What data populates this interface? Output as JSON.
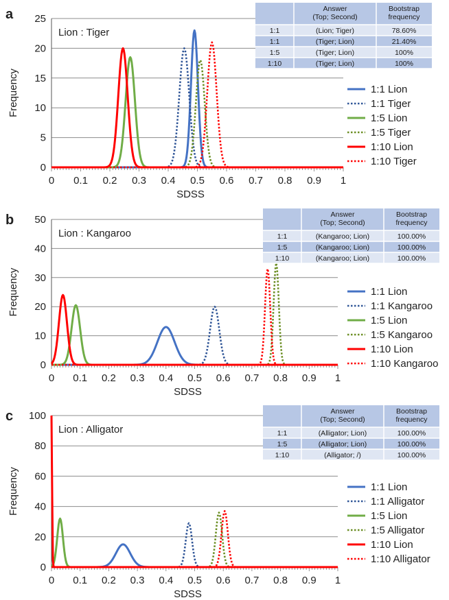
{
  "chart_data": [
    {
      "type": "line",
      "panel_label": "a",
      "annotation": "Lion : Tiger",
      "xlabel": "SDSS",
      "ylabel": "Frequency",
      "xlim": [
        0,
        1
      ],
      "ylim": [
        0,
        25
      ],
      "xticks": [
        "0",
        "0.1",
        "0.2",
        "0.3",
        "0.4",
        "0.5",
        "0.6",
        "0.7",
        "0.8",
        "0.9",
        "1"
      ],
      "yticks": [
        "0",
        "5",
        "10",
        "15",
        "20",
        "25"
      ],
      "grid": true,
      "legend_placement": "right",
      "series": [
        {
          "name": "1:1 Lion",
          "color": "#4472c4",
          "dash": "solid",
          "peak_x": 0.49,
          "peak_y": 23,
          "sigma": 0.012
        },
        {
          "name": "1:1 Tiger",
          "color": "#2f5597",
          "dash": "dotted",
          "peak_x": 0.455,
          "peak_y": 20,
          "sigma": 0.017
        },
        {
          "name": "1:5 Lion",
          "color": "#70ad47",
          "dash": "solid",
          "peak_x": 0.27,
          "peak_y": 18.5,
          "sigma": 0.016
        },
        {
          "name": "1:5 Tiger",
          "color": "#6b8e23",
          "dash": "dotted",
          "peak_x": 0.51,
          "peak_y": 18,
          "sigma": 0.015
        },
        {
          "name": "1:10 Lion",
          "color": "#ff0000",
          "dash": "solid",
          "peak_x": 0.245,
          "peak_y": 20,
          "sigma": 0.016
        },
        {
          "name": "1:10 Tiger",
          "color": "#ff0000",
          "dash": "dotted",
          "peak_x": 0.55,
          "peak_y": 21,
          "sigma": 0.016
        }
      ],
      "table": {
        "headers": [
          "",
          "Answer\n(Top; Second)",
          "Bootstrap\nfrequency"
        ],
        "rows": [
          [
            "1:1",
            "(Lion; Tiger)",
            "78.60%"
          ],
          [
            "1:1",
            "(Tiger; Lion)",
            "21.40%"
          ],
          [
            "1:5",
            "(Tiger; Lion)",
            "100%"
          ],
          [
            "1:10",
            "(Tiger; Lion)",
            "100%"
          ]
        ]
      }
    },
    {
      "type": "line",
      "panel_label": "b",
      "annotation": "Lion : Kangaroo",
      "xlabel": "SDSS",
      "ylabel": "Frequency",
      "xlim": [
        0,
        1
      ],
      "ylim": [
        0,
        50
      ],
      "xticks": [
        "0",
        "0.1",
        "0.2",
        "0.3",
        "0.4",
        "0.5",
        "0.6",
        "0.7",
        "0.8",
        "0.9",
        "1"
      ],
      "yticks": [
        "0",
        "10",
        "20",
        "30",
        "40",
        "50"
      ],
      "grid": true,
      "legend_placement": "right",
      "series": [
        {
          "name": "1:1 Lion",
          "color": "#4472c4",
          "dash": "solid",
          "peak_x": 0.4,
          "peak_y": 13,
          "sigma": 0.03
        },
        {
          "name": "1:1 Kangaroo",
          "color": "#2f5597",
          "dash": "dotted",
          "peak_x": 0.57,
          "peak_y": 20,
          "sigma": 0.016
        },
        {
          "name": "1:5 Lion",
          "color": "#70ad47",
          "dash": "solid",
          "peak_x": 0.085,
          "peak_y": 20.5,
          "sigma": 0.015
        },
        {
          "name": "1:5 Kangaroo",
          "color": "#6b8e23",
          "dash": "dotted",
          "peak_x": 0.785,
          "peak_y": 35,
          "sigma": 0.009
        },
        {
          "name": "1:10 Lion",
          "color": "#ff0000",
          "dash": "solid",
          "peak_x": 0.04,
          "peak_y": 24,
          "sigma": 0.014
        },
        {
          "name": "1:10 Kangaroo",
          "color": "#ff0000",
          "dash": "dotted",
          "peak_x": 0.755,
          "peak_y": 33,
          "sigma": 0.009
        }
      ],
      "table": {
        "headers": [
          "",
          "Answer\n(Top; Second)",
          "Bootstrap\nfrequency"
        ],
        "rows": [
          [
            "1:1",
            "(Kangaroo; Lion)",
            "100.00%"
          ],
          [
            "1:5",
            "(Kangaroo; Lion)",
            "100.00%"
          ],
          [
            "1:10",
            "(Kangaroo; Lion)",
            "100.00%"
          ]
        ]
      }
    },
    {
      "type": "line",
      "panel_label": "c",
      "annotation": "Lion : Alligator",
      "xlabel": "SDSS",
      "ylabel": "Frequency",
      "xlim": [
        0,
        1
      ],
      "ylim": [
        0,
        100
      ],
      "xticks": [
        "0",
        "0.1",
        "0.2",
        "0.3",
        "0.4",
        "0.5",
        "0.6",
        "0.7",
        "0.8",
        "0.9",
        "1"
      ],
      "yticks": [
        "0",
        "20",
        "40",
        "60",
        "80",
        "100"
      ],
      "grid": true,
      "legend_placement": "right",
      "series": [
        {
          "name": "1:1 Lion",
          "color": "#4472c4",
          "dash": "solid",
          "peak_x": 0.25,
          "peak_y": 15,
          "sigma": 0.025
        },
        {
          "name": "1:1 Alligator",
          "color": "#2f5597",
          "dash": "dotted",
          "peak_x": 0.48,
          "peak_y": 29,
          "sigma": 0.011
        },
        {
          "name": "1:5 Lion",
          "color": "#70ad47",
          "dash": "solid",
          "peak_x": 0.03,
          "peak_y": 32,
          "sigma": 0.01
        },
        {
          "name": "1:5 Alligator",
          "color": "#6b8e23",
          "dash": "dotted",
          "peak_x": 0.585,
          "peak_y": 36,
          "sigma": 0.011
        },
        {
          "name": "1:10 Lion",
          "color": "#ff0000",
          "dash": "solid",
          "peak_x": 0.0,
          "peak_y": 100,
          "sigma": 0.002
        },
        {
          "name": "1:10 Alligator",
          "color": "#ff0000",
          "dash": "dotted",
          "peak_x": 0.605,
          "peak_y": 37,
          "sigma": 0.011
        }
      ],
      "table": {
        "headers": [
          "",
          "Answer\n(Top; Second)",
          "Bootstrap\nfrequency"
        ],
        "rows": [
          [
            "1:1",
            "(Alligator; Lion)",
            "100.00%"
          ],
          [
            "1:5",
            "(Alligator; Lion)",
            "100.00%"
          ],
          [
            "1:10",
            "(Alligator; /)",
            "100.00%"
          ]
        ]
      }
    }
  ]
}
